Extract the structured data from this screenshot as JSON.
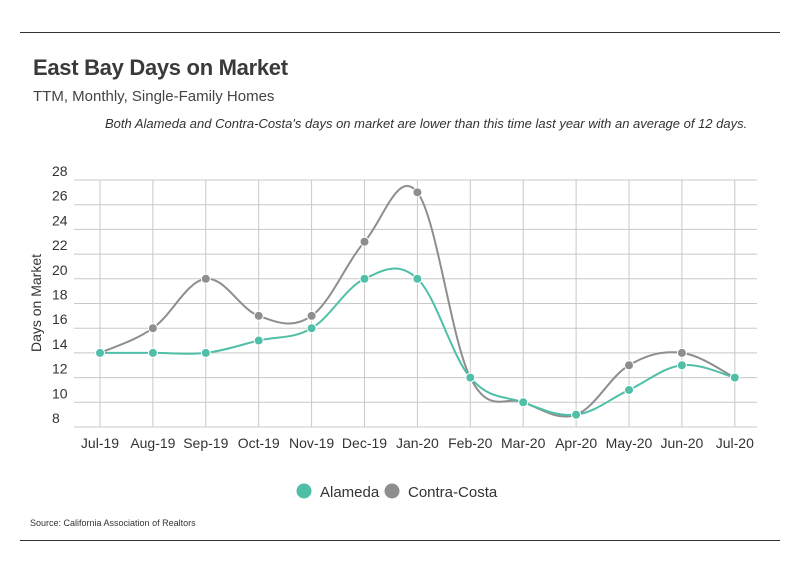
{
  "header": {
    "title": "East Bay Days on Market",
    "subtitle": "TTM, Monthly, Single-Family Homes",
    "note": "Both Alameda and Contra-Costa's days on market are lower than this time last year with an average of 12 days."
  },
  "footer": {
    "source": "Source:  California Association of Realtors"
  },
  "chart_data": {
    "type": "line",
    "title": "East Bay Days on Market",
    "subtitle": "TTM, Monthly, Single-Family Homes",
    "xlabel": "",
    "ylabel": "Days on Market",
    "categories": [
      "Jul-19",
      "Aug-19",
      "Sep-19",
      "Oct-19",
      "Nov-19",
      "Dec-19",
      "Jan-20",
      "Feb-20",
      "Mar-20",
      "Apr-20",
      "May-20",
      "Jun-20",
      "Jul-20"
    ],
    "ylim": [
      8,
      28
    ],
    "yticks": [
      8,
      10,
      12,
      14,
      16,
      18,
      20,
      22,
      24,
      26,
      28
    ],
    "grid": true,
    "legend": "bottom",
    "series": [
      {
        "name": "Alameda",
        "color": "#4fbfa8",
        "values": [
          14,
          14,
          14,
          15,
          16,
          20,
          20,
          12,
          10,
          9,
          11,
          13,
          12
        ]
      },
      {
        "name": "Contra-Costa",
        "color": "#8e8e8e",
        "values": [
          14,
          16,
          20,
          17,
          17,
          23,
          27,
          12,
          10,
          9,
          13,
          14,
          12
        ]
      }
    ]
  }
}
